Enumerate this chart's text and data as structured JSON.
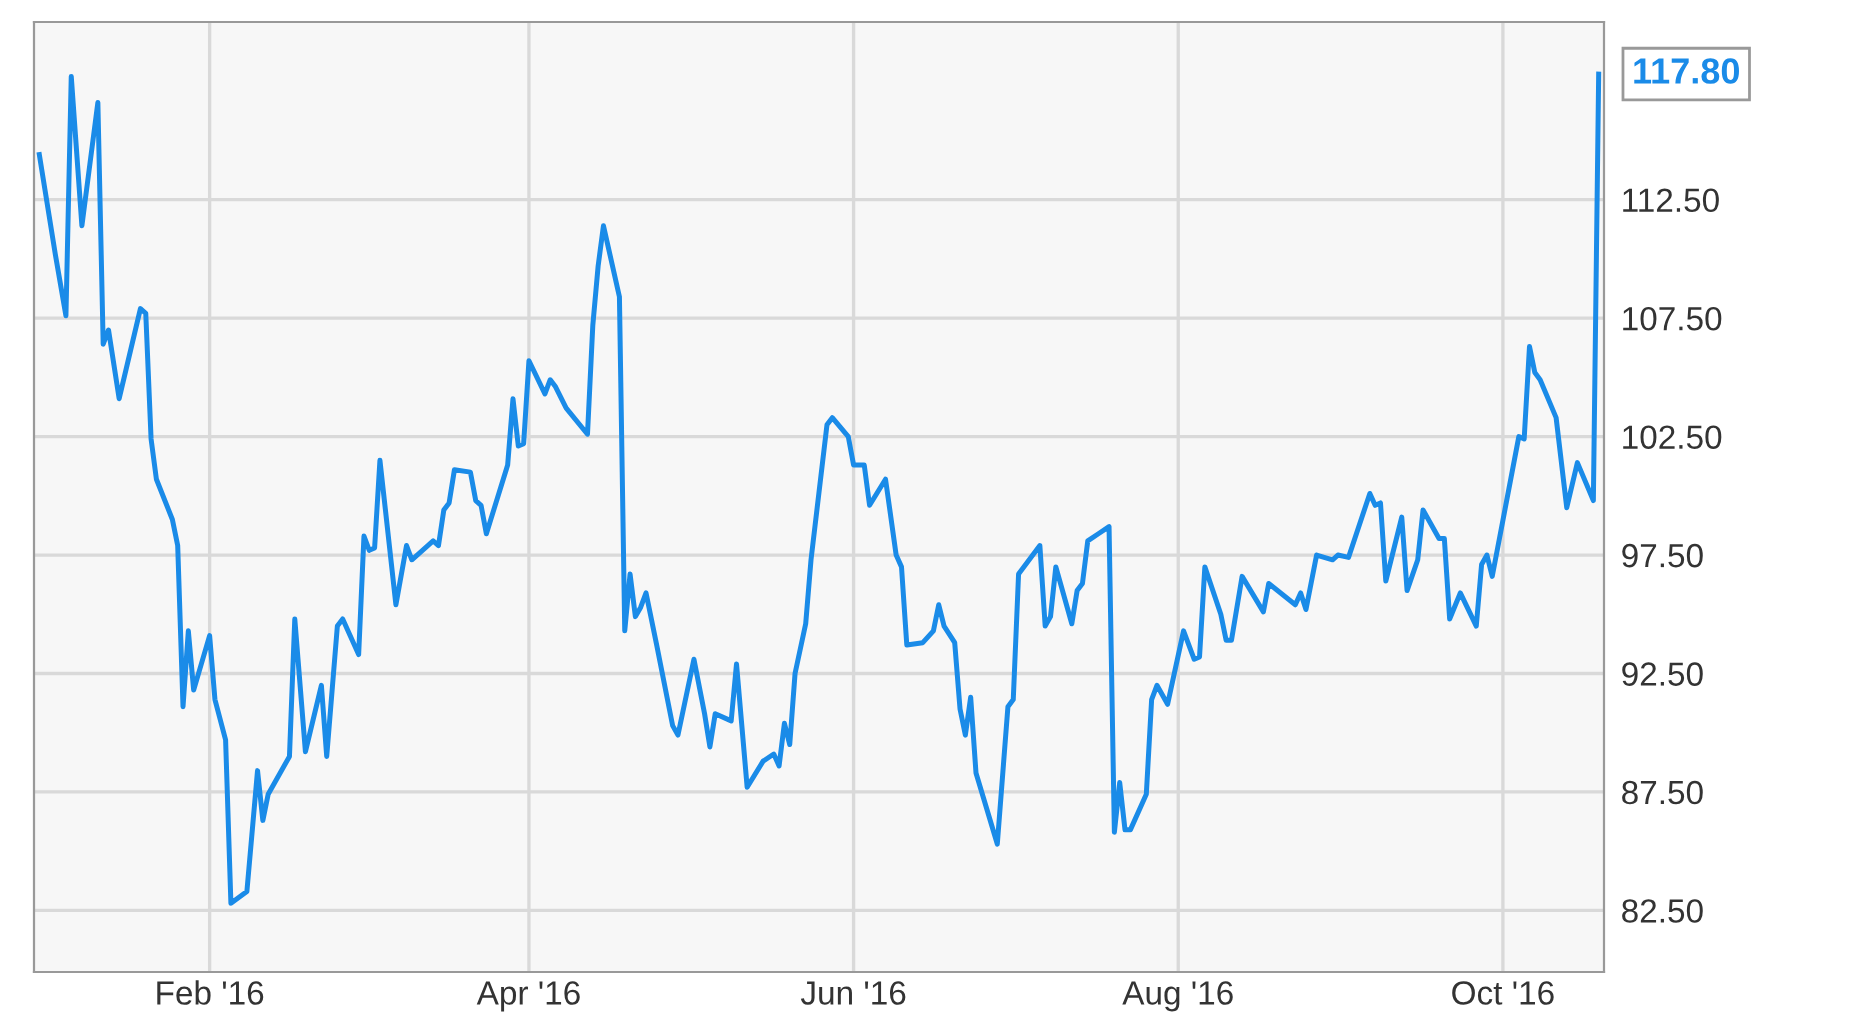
{
  "chart_data": {
    "type": "line",
    "x": [
      "2015-12-31",
      "2016-01-03",
      "2016-01-05",
      "2016-01-06",
      "2016-01-08",
      "2016-01-11",
      "2016-01-12",
      "2016-01-13",
      "2016-01-15",
      "2016-01-19",
      "2016-01-20",
      "2016-01-21",
      "2016-01-22",
      "2016-01-25",
      "2016-01-26",
      "2016-01-27",
      "2016-01-28",
      "2016-01-29",
      "2016-02-01",
      "2016-02-02",
      "2016-02-04",
      "2016-02-05",
      "2016-02-08",
      "2016-02-10",
      "2016-02-11",
      "2016-02-12",
      "2016-02-16",
      "2016-02-17",
      "2016-02-19",
      "2016-02-22",
      "2016-02-23",
      "2016-02-25",
      "2016-02-26",
      "2016-02-29",
      "2016-03-01",
      "2016-03-02",
      "2016-03-03",
      "2016-03-04",
      "2016-03-07",
      "2016-03-09",
      "2016-03-10",
      "2016-03-12",
      "2016-03-14",
      "2016-03-15",
      "2016-03-16",
      "2016-03-17",
      "2016-03-18",
      "2016-03-21",
      "2016-03-22",
      "2016-03-23",
      "2016-03-24",
      "2016-03-28",
      "2016-03-29",
      "2016-03-30",
      "2016-03-31",
      "2016-04-01",
      "2016-04-04",
      "2016-04-05",
      "2016-04-06",
      "2016-04-08",
      "2016-04-12",
      "2016-04-13",
      "2016-04-14",
      "2016-04-15",
      "2016-04-18",
      "2016-04-19",
      "2016-04-20",
      "2016-04-21",
      "2016-04-22",
      "2016-04-23",
      "2016-04-25",
      "2016-04-28",
      "2016-04-29",
      "2016-05-02",
      "2016-05-04",
      "2016-05-05",
      "2016-05-06",
      "2016-05-09",
      "2016-05-10",
      "2016-05-12",
      "2016-05-15",
      "2016-05-17",
      "2016-05-18",
      "2016-05-19",
      "2016-05-20",
      "2016-05-21",
      "2016-05-23",
      "2016-05-24",
      "2016-05-27",
      "2016-05-28",
      "2016-05-31",
      "2016-06-01",
      "2016-06-03",
      "2016-06-04",
      "2016-06-07",
      "2016-06-09",
      "2016-06-10",
      "2016-06-11",
      "2016-06-14",
      "2016-06-16",
      "2016-06-17",
      "2016-06-18",
      "2016-06-20",
      "2016-06-21",
      "2016-06-22",
      "2016-06-23",
      "2016-06-24",
      "2016-06-28",
      "2016-06-30",
      "2016-07-01",
      "2016-07-02",
      "2016-07-06",
      "2016-07-07",
      "2016-07-08",
      "2016-07-09",
      "2016-07-12",
      "2016-07-13",
      "2016-07-14",
      "2016-07-15",
      "2016-07-17",
      "2016-07-19",
      "2016-07-20",
      "2016-07-21",
      "2016-07-22",
      "2016-07-23",
      "2016-07-26",
      "2016-07-27",
      "2016-07-28",
      "2016-07-30",
      "2016-08-02",
      "2016-08-04",
      "2016-08-05",
      "2016-08-06",
      "2016-08-09",
      "2016-08-10",
      "2016-08-11",
      "2016-08-13",
      "2016-08-17",
      "2016-08-18",
      "2016-08-23",
      "2016-08-24",
      "2016-08-25",
      "2016-08-27",
      "2016-08-30",
      "2016-08-31",
      "2016-09-02",
      "2016-09-06",
      "2016-09-07",
      "2016-09-08",
      "2016-09-09",
      "2016-09-12",
      "2016-09-13",
      "2016-09-15",
      "2016-09-16",
      "2016-09-19",
      "2016-09-20",
      "2016-09-21",
      "2016-09-23",
      "2016-09-26",
      "2016-09-27",
      "2016-09-28",
      "2016-09-29",
      "2016-10-04",
      "2016-10-05",
      "2016-10-06",
      "2016-10-07",
      "2016-10-08",
      "2016-10-11",
      "2016-10-13",
      "2016-10-15",
      "2016-10-18",
      "2016-10-19"
    ],
    "series": [
      {
        "color": "#1a8be8",
        "values": [
          114.4,
          110.2,
          107.6,
          117.7,
          111.4,
          116.6,
          106.4,
          107.0,
          104.1,
          107.9,
          107.7,
          102.4,
          100.7,
          99.0,
          97.9,
          91.1,
          94.3,
          91.8,
          94.1,
          91.4,
          89.7,
          82.8,
          83.3,
          88.4,
          86.3,
          87.4,
          89.0,
          94.8,
          89.2,
          92.0,
          89.0,
          94.5,
          94.8,
          93.3,
          98.3,
          97.7,
          97.8,
          101.5,
          95.4,
          97.9,
          97.3,
          97.7,
          98.1,
          97.9,
          99.4,
          99.7,
          101.1,
          101.0,
          99.8,
          99.6,
          98.4,
          101.3,
          104.1,
          102.1,
          102.2,
          105.7,
          104.3,
          104.9,
          104.6,
          103.7,
          102.6,
          107.2,
          109.7,
          111.4,
          108.4,
          94.3,
          96.7,
          94.9,
          95.3,
          95.9,
          93.7,
          90.3,
          89.9,
          93.1,
          90.8,
          89.4,
          90.8,
          90.5,
          92.9,
          87.7,
          88.8,
          89.1,
          88.6,
          90.4,
          89.5,
          92.5,
          94.6,
          97.3,
          103.0,
          103.3,
          102.5,
          101.3,
          101.3,
          99.6,
          100.7,
          97.5,
          97.0,
          93.7,
          93.8,
          94.3,
          95.4,
          94.5,
          93.8,
          91.0,
          89.9,
          91.5,
          88.3,
          85.3,
          91.1,
          91.4,
          96.7,
          97.9,
          94.5,
          94.9,
          97.0,
          94.6,
          96.0,
          96.3,
          98.1,
          98.4,
          98.7,
          85.8,
          87.9,
          85.9,
          85.9,
          87.4,
          91.4,
          92.0,
          91.2,
          94.3,
          93.1,
          93.2,
          97.0,
          95.0,
          93.9,
          93.9,
          96.6,
          95.1,
          96.3,
          95.4,
          95.9,
          95.2,
          97.5,
          97.3,
          97.5,
          97.4,
          100.1,
          99.6,
          99.7,
          96.4,
          99.1,
          96.0,
          97.3,
          99.4,
          98.2,
          98.2,
          94.8,
          95.9,
          94.5,
          97.1,
          97.5,
          96.6,
          102.5,
          102.4,
          106.3,
          105.2,
          104.9,
          103.3,
          99.5,
          101.4,
          99.8,
          117.8
        ]
      }
    ],
    "xlim": [
      "2015-12-30",
      "2016-10-20"
    ],
    "xticks": [
      {
        "value": "2016-02-01",
        "label": "Feb '16"
      },
      {
        "value": "2016-04-01",
        "label": "Apr '16"
      },
      {
        "value": "2016-06-01",
        "label": "Jun '16"
      },
      {
        "value": "2016-08-01",
        "label": "Aug '16"
      },
      {
        "value": "2016-10-01",
        "label": "Oct '16"
      }
    ],
    "ylim": [
      79.9,
      120.0
    ],
    "yticks": [
      {
        "value": 82.5,
        "label": "82.50"
      },
      {
        "value": 87.5,
        "label": "87.50"
      },
      {
        "value": 92.5,
        "label": "92.50"
      },
      {
        "value": 97.5,
        "label": "97.50"
      },
      {
        "value": 102.5,
        "label": "102.50"
      },
      {
        "value": 107.5,
        "label": "107.50"
      },
      {
        "value": 112.5,
        "label": "112.50"
      }
    ],
    "annotations": [
      {
        "text": "117.80",
        "x": "2016-10-19",
        "y": 117.8
      }
    ],
    "grid": true,
    "marker": "none",
    "line_style": "solid"
  }
}
